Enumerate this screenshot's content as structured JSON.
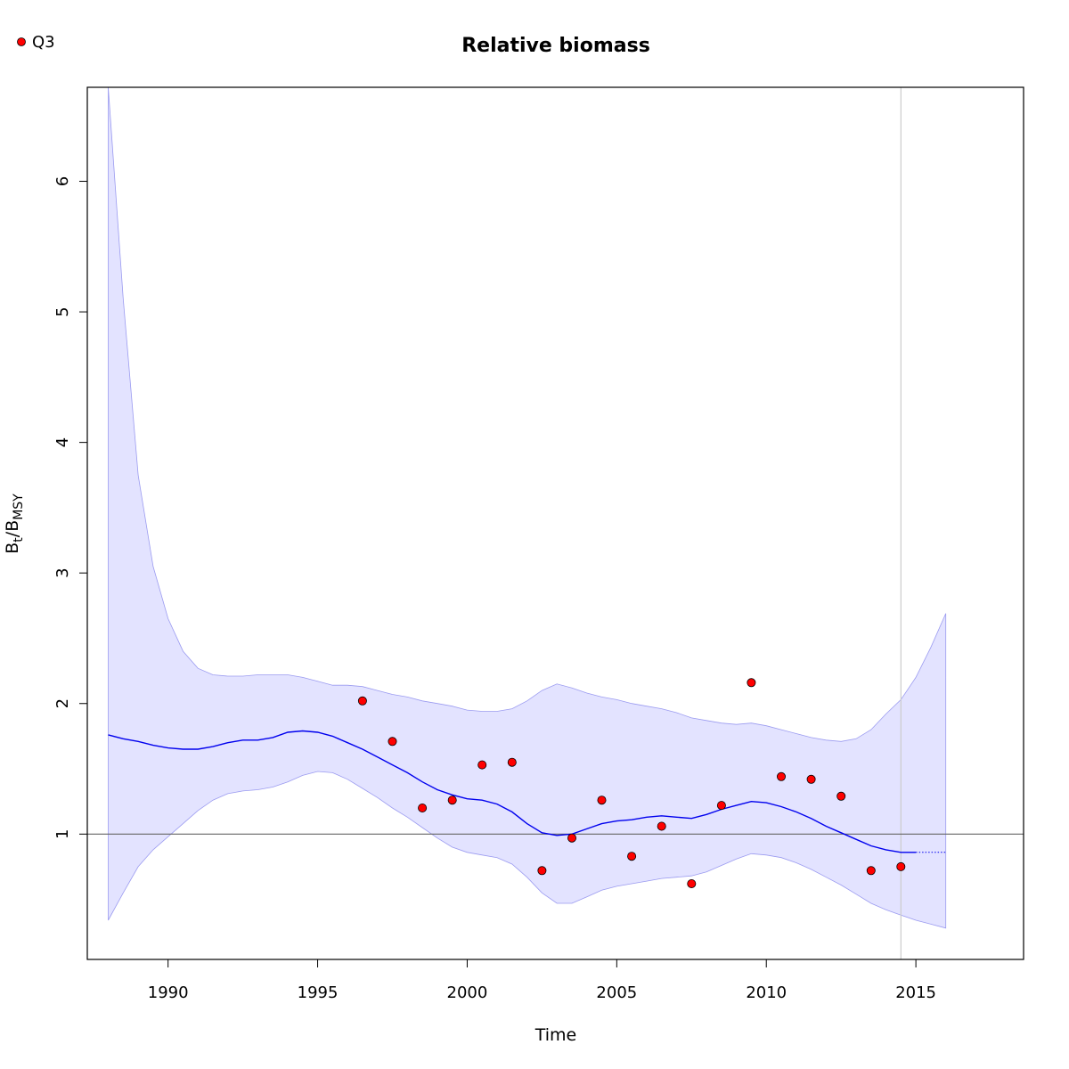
{
  "chart_data": {
    "type": "line",
    "title": "Relative biomass",
    "xlabel": "Time",
    "ylabel": {
      "main": "B",
      "sub1": "t",
      "sep": "/B",
      "sub2": "MSY"
    },
    "xlim": [
      1987.3,
      2018.6
    ],
    "ylim": [
      0.04,
      6.72
    ],
    "x_ticks": [
      1990,
      1995,
      2000,
      2005,
      2010,
      2015
    ],
    "y_ticks": [
      1,
      2,
      3,
      4,
      5,
      6
    ],
    "grid": false,
    "legend": {
      "position": "top-left",
      "entries": [
        {
          "label": "Q3",
          "marker": "filled-circle",
          "color": "#ff0000"
        }
      ]
    },
    "reference_lines": {
      "horizontal_y": 1,
      "vertical_x": 2014.5
    },
    "colors": {
      "band": "#e3e3ff",
      "band_edge": "#9b9bf0",
      "line": "#0000ee",
      "points": "#ff0000",
      "refline": "#666666",
      "vline": "#cccccc"
    },
    "band": {
      "x": [
        1988.0,
        1988.5,
        1989.0,
        1989.5,
        1990.0,
        1990.5,
        1991.0,
        1991.5,
        1992.0,
        1992.5,
        1993.0,
        1993.5,
        1994.0,
        1994.5,
        1995.0,
        1995.5,
        1996.0,
        1996.5,
        1997.0,
        1997.5,
        1998.0,
        1998.5,
        1999.0,
        1999.5,
        2000.0,
        2000.5,
        2001.0,
        2001.5,
        2002.0,
        2002.5,
        2003.0,
        2003.5,
        2004.0,
        2004.5,
        2005.0,
        2005.5,
        2006.0,
        2006.5,
        2007.0,
        2007.5,
        2008.0,
        2008.5,
        2009.0,
        2009.5,
        2010.0,
        2010.5,
        2011.0,
        2011.5,
        2012.0,
        2012.5,
        2013.0,
        2013.5,
        2014.0,
        2014.5,
        2015.0,
        2015.5,
        2016.0
      ],
      "upper": [
        6.72,
        5.1,
        3.75,
        3.05,
        2.65,
        2.4,
        2.27,
        2.22,
        2.21,
        2.21,
        2.22,
        2.22,
        2.22,
        2.2,
        2.17,
        2.14,
        2.14,
        2.13,
        2.1,
        2.07,
        2.05,
        2.02,
        2.0,
        1.98,
        1.95,
        1.94,
        1.94,
        1.96,
        2.02,
        2.1,
        2.15,
        2.12,
        2.08,
        2.05,
        2.03,
        2.0,
        1.98,
        1.96,
        1.93,
        1.89,
        1.87,
        1.85,
        1.84,
        1.85,
        1.83,
        1.8,
        1.77,
        1.74,
        1.72,
        1.71,
        1.73,
        1.8,
        1.92,
        2.03,
        2.2,
        2.43,
        2.69
      ],
      "lower": [
        0.34,
        0.55,
        0.75,
        0.88,
        0.98,
        1.08,
        1.18,
        1.26,
        1.31,
        1.33,
        1.34,
        1.36,
        1.4,
        1.45,
        1.48,
        1.47,
        1.42,
        1.35,
        1.28,
        1.2,
        1.13,
        1.05,
        0.97,
        0.9,
        0.86,
        0.84,
        0.82,
        0.77,
        0.67,
        0.55,
        0.47,
        0.47,
        0.52,
        0.57,
        0.6,
        0.62,
        0.64,
        0.66,
        0.67,
        0.68,
        0.71,
        0.76,
        0.81,
        0.85,
        0.84,
        0.82,
        0.78,
        0.73,
        0.67,
        0.61,
        0.54,
        0.47,
        0.42,
        0.38,
        0.34,
        0.31,
        0.28
      ]
    },
    "series": [
      {
        "style": "solid",
        "x": [
          1988.0,
          1988.5,
          1989.0,
          1989.5,
          1990.0,
          1990.5,
          1991.0,
          1991.5,
          1992.0,
          1992.5,
          1993.0,
          1993.5,
          1994.0,
          1994.5,
          1995.0,
          1995.5,
          1996.0,
          1996.5,
          1997.0,
          1997.5,
          1998.0,
          1998.5,
          1999.0,
          1999.5,
          2000.0,
          2000.5,
          2001.0,
          2001.5,
          2002.0,
          2002.5,
          2003.0,
          2003.5,
          2004.0,
          2004.5,
          2005.0,
          2005.5,
          2006.0,
          2006.5,
          2007.0,
          2007.5,
          2008.0,
          2008.5,
          2009.0,
          2009.5,
          2010.0,
          2010.5,
          2011.0,
          2011.5,
          2012.0,
          2012.5,
          2013.0,
          2013.5,
          2014.0,
          2014.5,
          2015.0
        ],
        "y": [
          1.76,
          1.73,
          1.71,
          1.68,
          1.66,
          1.65,
          1.65,
          1.67,
          1.7,
          1.72,
          1.72,
          1.74,
          1.78,
          1.79,
          1.78,
          1.75,
          1.7,
          1.65,
          1.59,
          1.53,
          1.47,
          1.4,
          1.34,
          1.3,
          1.27,
          1.26,
          1.23,
          1.17,
          1.08,
          1.01,
          0.99,
          1.0,
          1.04,
          1.08,
          1.1,
          1.11,
          1.13,
          1.14,
          1.13,
          1.12,
          1.15,
          1.19,
          1.22,
          1.25,
          1.24,
          1.21,
          1.17,
          1.12,
          1.06,
          1.01,
          0.96,
          0.91,
          0.88,
          0.86,
          0.86
        ]
      },
      {
        "style": "dotted",
        "x": [
          2015.0,
          2015.5,
          2016.0
        ],
        "y": [
          0.86,
          0.86,
          0.86
        ]
      }
    ],
    "points": {
      "label": "Q3",
      "x": [
        1996.5,
        1997.5,
        1998.5,
        1999.5,
        2000.5,
        2001.5,
        2002.5,
        2003.5,
        2004.5,
        2005.5,
        2006.5,
        2007.5,
        2008.5,
        2009.5,
        2010.5,
        2011.5,
        2012.5,
        2013.5,
        2014.5
      ],
      "y": [
        2.02,
        1.71,
        1.2,
        1.26,
        1.53,
        1.55,
        0.72,
        0.97,
        1.26,
        0.83,
        1.06,
        0.62,
        1.22,
        2.16,
        1.44,
        1.42,
        1.29,
        0.72,
        0.75
      ]
    }
  }
}
